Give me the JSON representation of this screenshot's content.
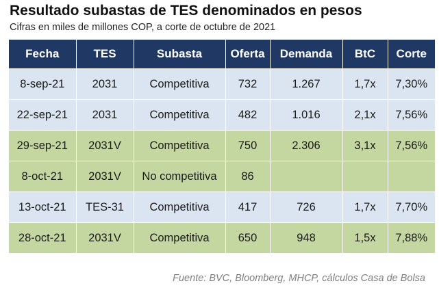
{
  "title": "Resultado subastas de TES denominados en pesos",
  "subtitle": "Cifras en miles de millones COP, a corte de octubre de 2021",
  "table": {
    "headers": [
      "Fecha",
      "TES",
      "Subasta",
      "Oferta",
      "Demanda",
      "BtC",
      "Corte"
    ],
    "rows": [
      {
        "style": "light",
        "cells": [
          "8-sep-21",
          "2031",
          "Competitiva",
          "732",
          "1.267",
          "1,7x",
          "7,30%"
        ]
      },
      {
        "style": "light",
        "cells": [
          "22-sep-21",
          "2031",
          "Competitiva",
          "482",
          "1.016",
          "2,1x",
          "7,56%"
        ]
      },
      {
        "style": "green",
        "cells": [
          "29-sep-21",
          "2031V",
          "Competitiva",
          "750",
          "2.306",
          "3,1x",
          "7,56%"
        ]
      },
      {
        "style": "green",
        "cells": [
          "8-oct-21",
          "2031V",
          "No competitiva",
          "86",
          "",
          "",
          ""
        ]
      },
      {
        "style": "light",
        "cells": [
          "13-oct-21",
          "TES-31",
          "Competitiva",
          "417",
          "726",
          "1,7x",
          "7,70%"
        ]
      },
      {
        "style": "green",
        "cells": [
          "28-oct-21",
          "2031V",
          "Competitiva",
          "650",
          "948",
          "1,5x",
          "7,88%"
        ]
      }
    ]
  },
  "colors": {
    "header_bg": "#1f3864",
    "row_light": "#dbe5f1",
    "row_green": "#c4d7a0"
  },
  "source": "Fuente: BVC, Bloomberg, MHCP, cálculos Casa de Bolsa"
}
